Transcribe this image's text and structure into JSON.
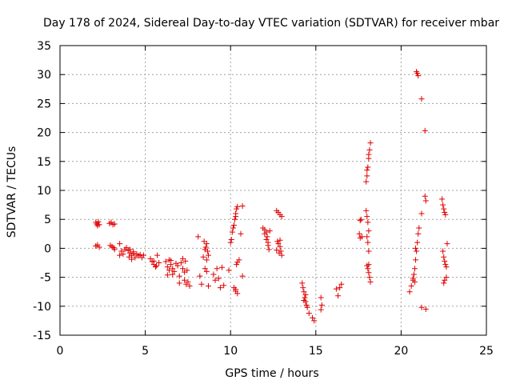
{
  "chart_data": {
    "type": "scatter",
    "title": "Day 178 of 2024, Sidereal Day-to-day VTEC variation (SDTVAR) for receiver mbar",
    "xlabel": "GPS time / hours",
    "ylabel": "SDTVAR / TECUs",
    "xlim": [
      0,
      25
    ],
    "ylim": [
      -15,
      35
    ],
    "xticks": [
      0,
      5,
      10,
      15,
      20,
      25
    ],
    "yticks": [
      -15,
      -10,
      -5,
      0,
      5,
      10,
      15,
      20,
      25,
      30,
      35
    ],
    "grid": true,
    "marker": "+",
    "color": "#e00000",
    "series": [
      {
        "name": "SDTVAR",
        "points": [
          [
            2.1,
            4.5
          ],
          [
            2.15,
            4.2
          ],
          [
            2.2,
            3.9
          ],
          [
            2.25,
            4.6
          ],
          [
            2.3,
            4.1
          ],
          [
            2.1,
            0.4
          ],
          [
            2.2,
            0.6
          ],
          [
            2.3,
            0.2
          ],
          [
            2.9,
            4.3
          ],
          [
            3.0,
            4.5
          ],
          [
            3.1,
            4.1
          ],
          [
            3.2,
            4.2
          ],
          [
            2.95,
            0.5
          ],
          [
            3.05,
            0.3
          ],
          [
            3.15,
            0.1
          ],
          [
            3.2,
            -0.2
          ],
          [
            3.5,
            0.8
          ],
          [
            3.6,
            -0.5
          ],
          [
            3.7,
            -1.0
          ],
          [
            3.5,
            -1.2
          ],
          [
            3.8,
            -0.2
          ],
          [
            3.9,
            0.1
          ],
          [
            4.0,
            -0.4
          ],
          [
            4.05,
            -1.5
          ],
          [
            4.1,
            -0.8
          ],
          [
            4.2,
            -1.2
          ],
          [
            4.3,
            -0.6
          ],
          [
            4.4,
            -1.6
          ],
          [
            4.5,
            -1.0
          ],
          [
            4.6,
            -1.3
          ],
          [
            4.7,
            -1.1
          ],
          [
            4.8,
            -1.6
          ],
          [
            4.9,
            -1.2
          ],
          [
            4.2,
            -1.9
          ],
          [
            4.1,
            -0.2
          ],
          [
            4.3,
            -0.9
          ],
          [
            5.3,
            -1.8
          ],
          [
            5.4,
            -2.3
          ],
          [
            5.5,
            -2.8
          ],
          [
            5.6,
            -3.2
          ],
          [
            5.5,
            -2.2
          ],
          [
            5.7,
            -1.2
          ],
          [
            5.8,
            -2.5
          ],
          [
            5.65,
            -3.0
          ],
          [
            6.2,
            -2.3
          ],
          [
            6.3,
            -3.2
          ],
          [
            6.4,
            -3.8
          ],
          [
            6.5,
            -2.1
          ],
          [
            6.6,
            -4.5
          ],
          [
            6.7,
            -4.0
          ],
          [
            6.3,
            -4.6
          ],
          [
            6.5,
            -2.8
          ],
          [
            6.6,
            -3.5
          ],
          [
            6.4,
            -2.0
          ],
          [
            6.8,
            -2.6
          ],
          [
            6.9,
            -3.0
          ],
          [
            7.0,
            -4.8
          ],
          [
            7.1,
            -2.5
          ],
          [
            7.2,
            -3.5
          ],
          [
            7.3,
            -5.5
          ],
          [
            7.4,
            -6.2
          ],
          [
            7.3,
            -4.1
          ],
          [
            7.2,
            -1.8
          ],
          [
            7.35,
            -2.2
          ],
          [
            7.5,
            -5.8
          ],
          [
            7.6,
            -6.5
          ],
          [
            7.45,
            -3.8
          ],
          [
            7.0,
            -6.0
          ],
          [
            8.1,
            2.0
          ],
          [
            8.2,
            -4.8
          ],
          [
            8.3,
            -6.2
          ],
          [
            8.4,
            -1.5
          ],
          [
            8.5,
            -3.5
          ],
          [
            8.6,
            -2.0
          ],
          [
            8.55,
            0.2
          ],
          [
            8.6,
            0.8
          ],
          [
            8.65,
            -0.5
          ],
          [
            8.7,
            -1.2
          ],
          [
            8.5,
            -0.2
          ],
          [
            8.6,
            -4.0
          ],
          [
            8.7,
            -6.5
          ],
          [
            8.45,
            1.2
          ],
          [
            9.0,
            -4.5
          ],
          [
            9.1,
            -5.5
          ],
          [
            9.2,
            -3.5
          ],
          [
            9.3,
            -5.2
          ],
          [
            9.4,
            -6.8
          ],
          [
            9.5,
            -3.3
          ],
          [
            9.6,
            -6.4
          ],
          [
            9.9,
            -3.8
          ],
          [
            10.0,
            1.0
          ],
          [
            10.05,
            1.5
          ],
          [
            10.1,
            2.8
          ],
          [
            10.2,
            4.0
          ],
          [
            10.25,
            5.0
          ],
          [
            10.3,
            6.0
          ],
          [
            10.35,
            6.8
          ],
          [
            10.4,
            7.2
          ],
          [
            10.2,
            -6.8
          ],
          [
            10.3,
            -7.4
          ],
          [
            10.4,
            -7.8
          ],
          [
            10.35,
            -2.8
          ],
          [
            10.4,
            -2.4
          ],
          [
            10.5,
            -2.0
          ],
          [
            10.3,
            5.5
          ],
          [
            10.15,
            3.5
          ],
          [
            10.3,
            -7.1
          ],
          [
            10.7,
            -4.8
          ],
          [
            10.6,
            2.5
          ],
          [
            10.7,
            7.3
          ],
          [
            11.9,
            3.5
          ],
          [
            12.0,
            2.5
          ],
          [
            12.1,
            1.5
          ],
          [
            12.2,
            0.5
          ],
          [
            12.25,
            -0.2
          ],
          [
            12.3,
            3.0
          ],
          [
            12.1,
            2.8
          ],
          [
            12.0,
            3.2
          ],
          [
            12.2,
            1.0
          ],
          [
            12.15,
            2.0
          ],
          [
            12.7,
            6.5
          ],
          [
            12.8,
            6.2
          ],
          [
            12.9,
            5.8
          ],
          [
            13.0,
            5.5
          ],
          [
            12.75,
            1.2
          ],
          [
            12.8,
            0.8
          ],
          [
            12.9,
            0.3
          ],
          [
            12.95,
            -0.5
          ],
          [
            13.0,
            -1.2
          ],
          [
            12.85,
            -0.8
          ],
          [
            12.7,
            -0.3
          ],
          [
            12.9,
            1.4
          ],
          [
            14.2,
            -6.0
          ],
          [
            14.25,
            -6.8
          ],
          [
            14.3,
            -7.5
          ],
          [
            14.35,
            -8.5
          ],
          [
            14.4,
            -9.2
          ],
          [
            14.45,
            -9.8
          ],
          [
            14.5,
            -10.2
          ],
          [
            14.3,
            -9.0
          ],
          [
            14.4,
            -8.0
          ],
          [
            14.6,
            -11.2
          ],
          [
            14.8,
            -12.0
          ],
          [
            14.9,
            -12.5
          ],
          [
            15.3,
            -8.5
          ],
          [
            15.35,
            -9.8
          ],
          [
            15.3,
            -10.6
          ],
          [
            16.2,
            -7.0
          ],
          [
            16.3,
            -8.2
          ],
          [
            16.4,
            -6.8
          ],
          [
            16.5,
            -6.2
          ],
          [
            17.6,
            4.8
          ],
          [
            17.65,
            5.0
          ],
          [
            17.55,
            2.5
          ],
          [
            17.6,
            1.8
          ],
          [
            17.7,
            2.0
          ],
          [
            17.95,
            11.5
          ],
          [
            18.0,
            12.5
          ],
          [
            18.05,
            14.0
          ],
          [
            18.1,
            15.5
          ],
          [
            18.15,
            17.0
          ],
          [
            18.2,
            18.2
          ],
          [
            18.1,
            16.2
          ],
          [
            18.0,
            13.5
          ],
          [
            17.95,
            6.5
          ],
          [
            18.0,
            5.5
          ],
          [
            18.05,
            4.5
          ],
          [
            18.1,
            3.0
          ],
          [
            18.0,
            2.0
          ],
          [
            18.05,
            1.0
          ],
          [
            18.1,
            -0.5
          ],
          [
            18.0,
            -3.0
          ],
          [
            18.05,
            -3.5
          ],
          [
            18.1,
            -4.2
          ],
          [
            18.15,
            -5.0
          ],
          [
            18.2,
            -5.8
          ],
          [
            18.1,
            -2.8
          ],
          [
            20.5,
            -7.5
          ],
          [
            20.6,
            -6.5
          ],
          [
            20.7,
            -5.5
          ],
          [
            20.75,
            -4.5
          ],
          [
            20.8,
            -3.5
          ],
          [
            20.85,
            -2.0
          ],
          [
            20.9,
            -0.5
          ],
          [
            20.95,
            1.0
          ],
          [
            21.0,
            2.5
          ],
          [
            21.05,
            3.5
          ],
          [
            20.7,
            -5.2
          ],
          [
            20.8,
            -5.8
          ],
          [
            20.85,
            0.0
          ],
          [
            20.9,
            30.5
          ],
          [
            20.95,
            30.2
          ],
          [
            21.0,
            29.8
          ],
          [
            21.2,
            25.8
          ],
          [
            21.4,
            20.3
          ],
          [
            21.2,
            6.0
          ],
          [
            21.4,
            9.0
          ],
          [
            21.45,
            8.2
          ],
          [
            21.2,
            -10.2
          ],
          [
            21.45,
            -10.5
          ],
          [
            22.4,
            8.5
          ],
          [
            22.45,
            7.5
          ],
          [
            22.5,
            6.8
          ],
          [
            22.55,
            6.2
          ],
          [
            22.6,
            5.8
          ],
          [
            22.5,
            -1.5
          ],
          [
            22.55,
            -2.2
          ],
          [
            22.6,
            -2.8
          ],
          [
            22.65,
            -3.2
          ],
          [
            22.5,
            -6.0
          ],
          [
            22.55,
            -5.5
          ],
          [
            22.65,
            -5.0
          ],
          [
            22.7,
            0.8
          ],
          [
            22.45,
            -0.5
          ]
        ]
      }
    ]
  }
}
